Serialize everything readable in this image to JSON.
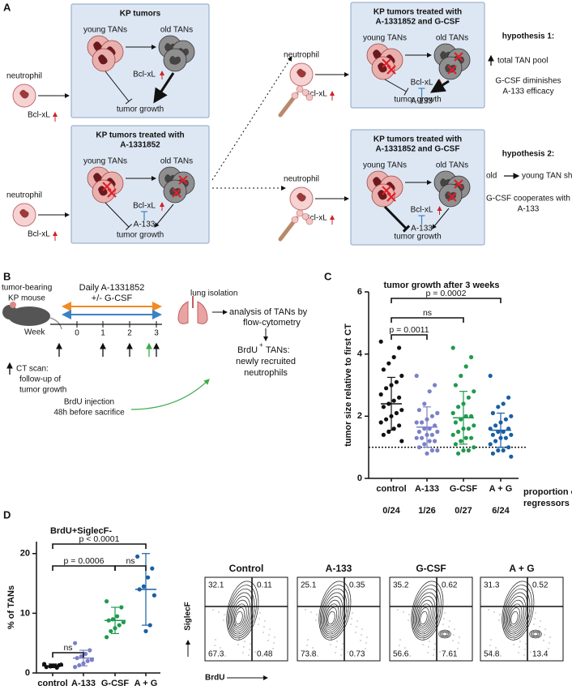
{
  "panel_a": {
    "label": "A",
    "scenarios": [
      {
        "neutrophil": "neutrophil",
        "neutrophil_factor": "Bcl-xL",
        "title": [
          "KP tumors"
        ],
        "young": "young TANs",
        "old": "old TANs",
        "factor": "Bcl-xL",
        "growth": "tumor growth"
      },
      {
        "neutrophil": "neutrophil",
        "neutrophil_factor": "Bcl-xL",
        "title": [
          "KP tumors treated with",
          "A-1331852"
        ],
        "young": "young TANs",
        "old": "old TANs",
        "factor": "Bcl-xL",
        "inhibitor": "A-133",
        "growth": "tumor growth"
      },
      {
        "neutrophil": "neutrophil",
        "neutrophil_factor": "Bcl-xL",
        "title": [
          "KP tumors treated with",
          "A-1331852 and G-CSF"
        ],
        "young": "young TANs",
        "old": "old TANs",
        "factor": "Bcl-xL",
        "inhibitor": "A-133",
        "growth": "tumor growth"
      },
      {
        "neutrophil": "neutrophil",
        "neutrophil_factor": "Bcl-xL",
        "title": [
          "KP tumors treated with",
          "A-1331852 and G-CSF"
        ],
        "young": "young TANs",
        "old": "old TANs",
        "factor": "Bcl-xL",
        "inhibitor": "A-133",
        "growth": "tumor growth"
      }
    ],
    "hypotheses": [
      {
        "title": "hypothesis 1:",
        "effect": [
          "total TAN pool"
        ],
        "conclusion": [
          "G-CSF diminishes",
          "A-133 efficacy"
        ]
      },
      {
        "title": "hypothesis 2:",
        "effect": [
          "old",
          "young TAN shift"
        ],
        "conclusion": [
          "G-CSF cooperates with",
          "A-133"
        ]
      }
    ]
  },
  "panel_b": {
    "label": "B",
    "mouse": [
      "tumor-bearing",
      "KP mouse"
    ],
    "treatment": "Daily A-1331852",
    "cotreatment": "+/- G-CSF",
    "week_label": "Week",
    "weeks": [
      "0",
      "1",
      "2",
      "3"
    ],
    "isolation": "lung isolation",
    "analysis": [
      "analysis of TANs by",
      "flow-cytometry"
    ],
    "brdu_result": [
      "BrdU",
      "+",
      "TANs:",
      "newly recruited",
      "neutrophils"
    ],
    "ct_scan": [
      "CT scan:",
      "follow-up of",
      "tumor growth"
    ],
    "brdu_injection": [
      "BrdU injection",
      "48h before sacrifice"
    ]
  },
  "chart_data": [
    {
      "type": "strip",
      "panel_label": "C",
      "title": "tumor growth after 3 weeks",
      "y_label": "tumor size relative to first CT",
      "categories": [
        "control",
        "A-133",
        "G-CSF",
        "A + G"
      ],
      "colors": [
        "#111111",
        "#7b80c8",
        "#1f9a4c",
        "#1a5fa3"
      ],
      "values": [
        [
          4.4,
          4.2,
          3.9,
          3.7,
          3.5,
          3.3,
          3.1,
          3.0,
          2.9,
          2.7,
          2.6,
          2.5,
          2.4,
          2.3,
          2.2,
          2.1,
          2.0,
          1.9,
          1.8,
          1.7,
          1.6,
          1.5,
          1.4,
          1.2
        ],
        [
          3.3,
          3.0,
          2.8,
          2.4,
          2.2,
          2.1,
          2.0,
          1.9,
          1.8,
          1.8,
          1.7,
          1.6,
          1.6,
          1.5,
          1.5,
          1.4,
          1.4,
          1.3,
          1.3,
          1.2,
          1.2,
          1.1,
          1.0,
          0.9,
          0.9,
          0.8
        ],
        [
          4.2,
          3.9,
          3.6,
          3.3,
          3.0,
          2.8,
          2.6,
          2.4,
          2.3,
          2.1,
          2.0,
          2.0,
          1.9,
          1.8,
          1.7,
          1.6,
          1.6,
          1.5,
          1.4,
          1.3,
          1.3,
          1.2,
          1.1,
          1.0,
          0.9,
          0.9,
          0.8
        ],
        [
          3.3,
          2.6,
          2.4,
          2.3,
          2.1,
          2.0,
          1.9,
          1.8,
          1.7,
          1.6,
          1.6,
          1.5,
          1.5,
          1.4,
          1.4,
          1.3,
          1.3,
          1.2,
          1.1,
          1.0,
          0.9,
          0.9,
          0.8,
          0.7
        ]
      ],
      "means": [
        2.4,
        1.65,
        1.95,
        1.55
      ],
      "sds": [
        0.85,
        0.65,
        0.85,
        0.55
      ],
      "ylim": [
        0,
        6
      ],
      "yticks": [
        0,
        2,
        4,
        6
      ],
      "reference_line": 1,
      "annotations": [
        {
          "text": "p = 0.0002",
          "pair": [
            0,
            3
          ]
        },
        {
          "text": "ns",
          "pair": [
            0,
            2
          ]
        },
        {
          "text": "p = 0.0011",
          "pair": [
            0,
            1
          ]
        }
      ],
      "footer": {
        "label": [
          "proportion of",
          "regressors"
        ],
        "values": [
          "0/24",
          "1/26",
          "0/27",
          "6/24"
        ]
      }
    },
    {
      "type": "strip",
      "panel_label": "D",
      "title": "BrdU+SiglecF-",
      "y_label": "% of TANs",
      "categories": [
        "control",
        "A-133",
        "G-CSF",
        "A + G"
      ],
      "colors": [
        "#111111",
        "#7b80c8",
        "#1f9a4c",
        "#1a5fa3"
      ],
      "values": [
        [
          1.5,
          1.3,
          1.2,
          1.1,
          1.0,
          1.4,
          0.9,
          1.2
        ],
        [
          5.0,
          3.8,
          3.2,
          2.8,
          2.5,
          2.2,
          2.0,
          1.6,
          1.3,
          1.0
        ],
        [
          12.0,
          11.0,
          9.5,
          9.0,
          8.8,
          8.5,
          8.0,
          7.5,
          7.0,
          6.0
        ],
        [
          19.5,
          17.5,
          16.0,
          14.5,
          14.0,
          13.0,
          8.0,
          7.0
        ]
      ],
      "means": [
        1.2,
        2.5,
        8.8,
        14.0
      ],
      "sds": [
        0.3,
        1.3,
        2.2,
        6.0
      ],
      "ylim": [
        0,
        22
      ],
      "yticks": [
        0,
        10,
        20
      ],
      "annotations": [
        {
          "text": "p < 0.0001",
          "pair": [
            0,
            3
          ]
        },
        {
          "text": "p = 0.0006",
          "pair": [
            0,
            2
          ]
        },
        {
          "text": "ns",
          "pair": [
            2,
            3
          ]
        },
        {
          "text": "ns",
          "pair": [
            0,
            1
          ]
        }
      ]
    }
  ],
  "flow_plots": {
    "x_label": "BrdU",
    "y_label": "SiglecF",
    "samples": [
      {
        "name": "Control",
        "quadrants": [
          32.1,
          0.11,
          67.3,
          0.48
        ]
      },
      {
        "name": "A-133",
        "quadrants": [
          25.1,
          0.35,
          73.8,
          0.73
        ]
      },
      {
        "name": "G-CSF",
        "quadrants": [
          35.2,
          0.62,
          56.6,
          7.61
        ]
      },
      {
        "name": "A + G",
        "quadrants": [
          31.3,
          0.52,
          54.8,
          13.4
        ]
      }
    ]
  }
}
